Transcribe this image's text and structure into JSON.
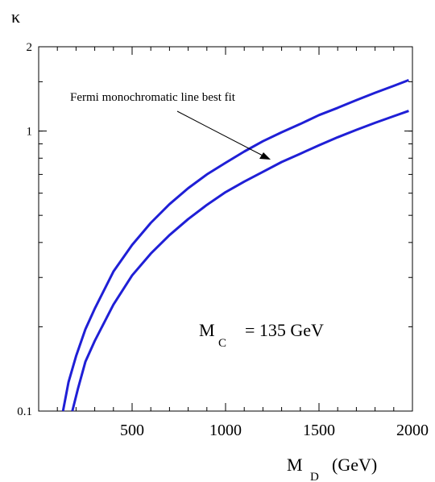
{
  "chart_data": {
    "type": "line",
    "ylabel": "κ",
    "xlabel_main": "M",
    "xlabel_sub": "D",
    "xlabel_unit": "(GeV)",
    "xlim": [
      0,
      2000
    ],
    "ylim": [
      0.1,
      2.0
    ],
    "yscale": "log",
    "x_ticks": [
      500,
      1000,
      1500,
      2000
    ],
    "x_tick_labels": [
      "500",
      "1000",
      "1500",
      "2000"
    ],
    "y_ticks": [
      0.1,
      1,
      2
    ],
    "y_tick_labels": [
      "0.1",
      "1",
      "2"
    ],
    "annotation": {
      "text": "Fermi monochromatic line best fit",
      "points_to": {
        "x": 1280,
        "y": 0.88
      }
    },
    "param_label": {
      "prefix": "M",
      "sub": "C",
      "suffix": "= 135 GeV"
    },
    "line_color": "#1f1fd6",
    "series": [
      {
        "x": [
          130,
          160,
          200,
          250,
          300,
          400,
          500,
          600,
          700,
          800,
          900,
          1000,
          1100,
          1200,
          1300,
          1400,
          1500,
          1600,
          1700,
          1800,
          1900,
          1980
        ],
        "y": [
          0.1,
          0.127,
          0.157,
          0.196,
          0.232,
          0.315,
          0.392,
          0.47,
          0.548,
          0.625,
          0.7,
          0.77,
          0.845,
          0.92,
          0.99,
          1.06,
          1.14,
          1.21,
          1.29,
          1.37,
          1.45,
          1.52
        ]
      },
      {
        "x": [
          180,
          210,
          250,
          300,
          400,
          500,
          600,
          700,
          800,
          900,
          1000,
          1100,
          1200,
          1300,
          1400,
          1500,
          1600,
          1700,
          1800,
          1900,
          1980
        ],
        "y": [
          0.1,
          0.12,
          0.15,
          0.178,
          0.24,
          0.305,
          0.365,
          0.425,
          0.485,
          0.545,
          0.605,
          0.66,
          0.715,
          0.775,
          0.83,
          0.89,
          0.95,
          1.01,
          1.07,
          1.13,
          1.18
        ]
      }
    ]
  }
}
